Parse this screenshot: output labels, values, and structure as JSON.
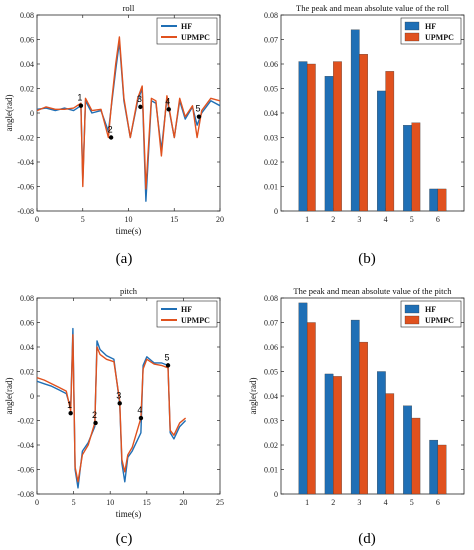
{
  "colors": {
    "hf": "#1f6fb5",
    "upmpc": "#e0511e"
  },
  "panels": [
    {
      "label": "(a)"
    },
    {
      "label": "(b)"
    },
    {
      "label": "(c)"
    },
    {
      "label": "(d)"
    }
  ],
  "chart_data": [
    {
      "id": "roll-time",
      "type": "line",
      "title": "roll",
      "xlabel": "time(s)",
      "ylabel": "angle(rad)",
      "xlim": [
        0,
        20
      ],
      "ylim": [
        -0.08,
        0.08
      ],
      "xticks": [
        0,
        5,
        10,
        15,
        20
      ],
      "yticks": [
        -0.08,
        -0.06,
        -0.04,
        -0.02,
        0,
        0.02,
        0.04,
        0.06,
        0.08
      ],
      "legend": [
        "HF",
        "UPMPC"
      ],
      "legend_position": "top-right",
      "series": [
        {
          "name": "HF",
          "x": [
            0,
            1,
            2,
            3,
            4,
            4.8,
            5.0,
            5.3,
            6,
            7,
            7.8,
            8.2,
            8.6,
            9.0,
            9.5,
            10.2,
            11,
            11.5,
            11.9,
            12.5,
            13,
            13.6,
            14.2,
            15,
            15.6,
            16.2,
            17,
            17.5,
            18,
            19,
            20
          ],
          "y": [
            0.003,
            0.004,
            0.002,
            0.004,
            0.002,
            0.006,
            -0.055,
            0.01,
            0.0,
            0.002,
            -0.015,
            0.01,
            0.035,
            0.058,
            0.01,
            -0.02,
            0.01,
            0.02,
            -0.072,
            0.01,
            0.008,
            -0.03,
            0.012,
            -0.02,
            0.01,
            -0.005,
            0.005,
            -0.01,
            0.0,
            0.01,
            0.006
          ]
        },
        {
          "name": "UPMPC",
          "x": [
            0,
            1,
            2,
            3,
            4,
            4.8,
            5.0,
            5.3,
            6,
            7,
            7.8,
            8.2,
            8.6,
            9.0,
            9.5,
            10.2,
            11,
            11.5,
            11.9,
            12.5,
            13,
            13.6,
            14.2,
            15,
            15.6,
            16.2,
            17,
            17.5,
            18,
            19,
            20
          ],
          "y": [
            0.002,
            0.005,
            0.003,
            0.003,
            0.004,
            0.008,
            -0.06,
            0.012,
            0.002,
            0.003,
            -0.02,
            0.012,
            0.04,
            0.062,
            0.012,
            -0.02,
            0.012,
            0.022,
            -0.062,
            0.012,
            0.01,
            -0.035,
            0.014,
            -0.02,
            0.012,
            -0.003,
            0.006,
            -0.02,
            0.002,
            0.012,
            0.01
          ]
        }
      ],
      "annotations": [
        {
          "text": "1",
          "x": 4.8,
          "y": 0.006
        },
        {
          "text": "2",
          "x": 8.1,
          "y": -0.02
        },
        {
          "text": "3",
          "x": 11.3,
          "y": 0.005
        },
        {
          "text": "4",
          "x": 14.4,
          "y": 0.003
        },
        {
          "text": "5",
          "x": 17.7,
          "y": -0.003
        }
      ]
    },
    {
      "id": "roll-bars",
      "type": "bar",
      "title": "The peak and mean absolute value of the roll",
      "categories": [
        "1",
        "2",
        "3",
        "4",
        "5",
        "6"
      ],
      "ylim": [
        0,
        0.08
      ],
      "yticks": [
        0,
        0.01,
        0.02,
        0.03,
        0.04,
        0.05,
        0.06,
        0.07,
        0.08
      ],
      "legend": [
        "HF",
        "UPMPC"
      ],
      "legend_position": "top-right",
      "series": [
        {
          "name": "HF",
          "values": [
            0.061,
            0.055,
            0.074,
            0.049,
            0.035,
            0.009
          ]
        },
        {
          "name": "UPMPC",
          "values": [
            0.06,
            0.061,
            0.064,
            0.057,
            0.036,
            0.009
          ]
        }
      ]
    },
    {
      "id": "pitch-time",
      "type": "line",
      "title": "pitch",
      "xlabel": "time(s)",
      "ylabel": "angle(rad)",
      "xlim": [
        0,
        25
      ],
      "ylim": [
        -0.08,
        0.08
      ],
      "xticks": [
        0,
        5,
        10,
        15,
        20,
        25
      ],
      "yticks": [
        -0.08,
        -0.06,
        -0.04,
        -0.02,
        0,
        0.02,
        0.04,
        0.06,
        0.08
      ],
      "legend": [
        "HF",
        "UPMPC"
      ],
      "legend_position": "top-right",
      "series": [
        {
          "name": "HF",
          "x": [
            0,
            1,
            2,
            3,
            4,
            4.6,
            4.9,
            5.2,
            5.6,
            6.2,
            7,
            7.9,
            8.2,
            8.6,
            9.5,
            10.5,
            11.3,
            11.6,
            12.0,
            12.4,
            13,
            14.2,
            14.5,
            15,
            16,
            17,
            17.9,
            18.2,
            18.7,
            19.5,
            20.3
          ],
          "y": [
            0.012,
            0.01,
            0.008,
            0.005,
            0.002,
            -0.01,
            0.055,
            -0.06,
            -0.075,
            -0.045,
            -0.038,
            -0.025,
            0.045,
            0.038,
            0.033,
            0.03,
            -0.006,
            -0.055,
            -0.07,
            -0.05,
            -0.045,
            -0.03,
            0.025,
            0.032,
            0.027,
            0.027,
            0.025,
            -0.03,
            -0.035,
            -0.025,
            -0.02
          ]
        },
        {
          "name": "UPMPC",
          "x": [
            0,
            1,
            2,
            3,
            4,
            4.6,
            4.9,
            5.2,
            5.6,
            6.2,
            7,
            7.9,
            8.2,
            8.6,
            9.5,
            10.5,
            11.3,
            11.6,
            12.0,
            12.4,
            13,
            14.2,
            14.5,
            15,
            16,
            17,
            17.9,
            18.2,
            18.7,
            19.5,
            20.3
          ],
          "y": [
            0.015,
            0.013,
            0.01,
            0.007,
            0.004,
            -0.012,
            0.05,
            -0.058,
            -0.07,
            -0.048,
            -0.04,
            -0.022,
            0.04,
            0.034,
            0.03,
            0.028,
            -0.004,
            -0.052,
            -0.062,
            -0.048,
            -0.042,
            -0.018,
            0.022,
            0.03,
            0.026,
            0.025,
            0.023,
            -0.028,
            -0.032,
            -0.022,
            -0.018
          ]
        }
      ],
      "annotations": [
        {
          "text": "1",
          "x": 4.6,
          "y": -0.014
        },
        {
          "text": "2",
          "x": 8.0,
          "y": -0.022
        },
        {
          "text": "3",
          "x": 11.3,
          "y": -0.006
        },
        {
          "text": "4",
          "x": 14.2,
          "y": -0.018
        },
        {
          "text": "5",
          "x": 17.9,
          "y": 0.025
        }
      ]
    },
    {
      "id": "pitch-bars",
      "type": "bar",
      "title": "The peak and mean absolute value of the pitch",
      "categories": [
        "1",
        "2",
        "3",
        "4",
        "5",
        "6"
      ],
      "ylim": [
        0,
        0.08
      ],
      "yticks": [
        0,
        0.01,
        0.02,
        0.03,
        0.04,
        0.05,
        0.06,
        0.07,
        0.08
      ],
      "ylabel": "angle(rad)",
      "legend": [
        "HF",
        "UPMPC"
      ],
      "legend_position": "top-right",
      "series": [
        {
          "name": "HF",
          "values": [
            0.078,
            0.049,
            0.071,
            0.05,
            0.036,
            0.022
          ]
        },
        {
          "name": "UPMPC",
          "values": [
            0.07,
            0.048,
            0.062,
            0.041,
            0.031,
            0.02
          ]
        }
      ]
    }
  ]
}
